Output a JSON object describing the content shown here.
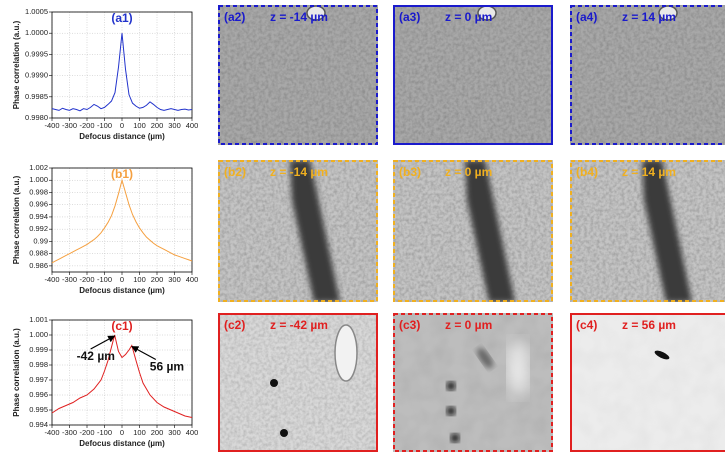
{
  "chart_data": [
    {
      "type": "line",
      "title": "(a1)",
      "xlabel": "Defocus distance (µm)",
      "ylabel": "Phase correlation (a.u.)",
      "xlim": [
        -400,
        400
      ],
      "xticks": [
        -400,
        -300,
        -200,
        -100,
        0,
        100,
        200,
        300,
        400
      ],
      "ylim": [
        0.998,
        1.0005
      ],
      "yticks": [
        {
          "value": 0.998,
          "label": "0.9980"
        },
        0.9985,
        {
          "value": 0.999,
          "label": "0.9990"
        },
        0.9995,
        {
          "value": 1.0,
          "label": "1.0000"
        },
        1.0005
      ],
      "grid": true,
      "x": [
        -400,
        -380,
        -360,
        -340,
        -320,
        -300,
        -280,
        -260,
        -240,
        -220,
        -200,
        -180,
        -160,
        -140,
        -120,
        -100,
        -80,
        -60,
        -40,
        -20,
        0,
        20,
        40,
        60,
        80,
        100,
        120,
        140,
        160,
        180,
        200,
        220,
        240,
        260,
        280,
        300,
        320,
        340,
        360,
        380,
        400
      ],
      "series": [
        {
          "color": "#2233cc",
          "values": [
            0.99822,
            0.9982,
            0.99818,
            0.99823,
            0.9982,
            0.99818,
            0.99822,
            0.9982,
            0.99817,
            0.99822,
            0.9982,
            0.99825,
            0.99832,
            0.99828,
            0.99822,
            0.99825,
            0.99832,
            0.9984,
            0.9986,
            0.9992,
            1.0,
            0.99915,
            0.99855,
            0.99835,
            0.99828,
            0.99823,
            0.99825,
            0.9983,
            0.99838,
            0.99832,
            0.99825,
            0.9982,
            0.99818,
            0.9982,
            0.99822,
            0.9982,
            0.99818,
            0.9982,
            0.99821,
            0.99819,
            0.9982
          ]
        }
      ]
    },
    {
      "type": "line",
      "title": "(b1)",
      "xlabel": "Defocus distance (µm)",
      "ylabel": "Phase correlation (a.u.)",
      "xlim": [
        -400,
        400
      ],
      "xticks": [
        -400,
        -300,
        -200,
        -100,
        0,
        100,
        200,
        300,
        400
      ],
      "ylim": [
        0.985,
        1.002
      ],
      "yticks": [
        0.986,
        0.988,
        0.99,
        0.992,
        0.994,
        0.996,
        0.998,
        {
          "value": 1.0,
          "label": "1.000"
        },
        1.002
      ],
      "grid": true,
      "x": [
        -400,
        -380,
        -360,
        -340,
        -320,
        -300,
        -280,
        -260,
        -240,
        -220,
        -200,
        -180,
        -160,
        -140,
        -120,
        -100,
        -80,
        -60,
        -40,
        -20,
        0,
        20,
        40,
        60,
        80,
        100,
        120,
        140,
        160,
        180,
        200,
        220,
        240,
        260,
        280,
        300,
        320,
        340,
        360,
        380,
        400
      ],
      "series": [
        {
          "color": "#f5a040",
          "values": [
            0.9865,
            0.9868,
            0.9871,
            0.9874,
            0.9877,
            0.988,
            0.9883,
            0.9886,
            0.9889,
            0.9892,
            0.9895,
            0.9899,
            0.9903,
            0.9908,
            0.9914,
            0.9922,
            0.9931,
            0.9942,
            0.9958,
            0.9978,
            1.0,
            0.998,
            0.996,
            0.9944,
            0.9932,
            0.9922,
            0.9914,
            0.9907,
            0.9902,
            0.9897,
            0.9893,
            0.989,
            0.9887,
            0.9884,
            0.9881,
            0.9878,
            0.9876,
            0.9874,
            0.9872,
            0.987,
            0.9868
          ]
        }
      ]
    },
    {
      "type": "line",
      "title": "(c1)",
      "xlabel": "Defocus distance (µm)",
      "ylabel": "Phase correlation (a.u.)",
      "xlim": [
        -400,
        400
      ],
      "xticks": [
        -400,
        -300,
        -200,
        -100,
        0,
        100,
        200,
        300,
        400
      ],
      "ylim": [
        0.994,
        1.001
      ],
      "yticks": [
        0.994,
        0.995,
        0.996,
        0.997,
        0.998,
        0.999,
        {
          "value": 1.0,
          "label": "1.000"
        },
        1.001
      ],
      "grid": true,
      "x": [
        -400,
        -360,
        -320,
        -280,
        -240,
        -200,
        -160,
        -120,
        -100,
        -80,
        -60,
        -42,
        -20,
        0,
        20,
        40,
        56,
        80,
        100,
        120,
        160,
        200,
        240,
        280,
        320,
        360,
        400
      ],
      "series": [
        {
          "color": "#e02020",
          "values": [
            0.9948,
            0.9951,
            0.9953,
            0.9955,
            0.9958,
            0.996,
            0.9964,
            0.997,
            0.9976,
            0.9983,
            0.9992,
            1.0,
            0.9989,
            0.9985,
            0.9987,
            0.999,
            0.9993,
            0.9983,
            0.9975,
            0.9968,
            0.996,
            0.9955,
            0.9952,
            0.995,
            0.9948,
            0.9946,
            0.9945
          ]
        }
      ],
      "annotations": [
        {
          "text": "-42 µm",
          "x": -42
        },
        {
          "text": "56 µm",
          "x": 56
        }
      ]
    }
  ],
  "panels": [
    [
      {
        "label": "(a2)",
        "z": "z = -14 µm"
      },
      {
        "label": "(a3)",
        "z": "z = 0 µm"
      },
      {
        "label": "(a4)",
        "z": "z = 14 µm"
      }
    ],
    [
      {
        "label": "(b2)",
        "z": "z = -14 µm"
      },
      {
        "label": "(b3)",
        "z": "z = 0 µm"
      },
      {
        "label": "(b4)",
        "z": "z = 14 µm"
      }
    ],
    [
      {
        "label": "(c2)",
        "z": "z = -42 µm"
      },
      {
        "label": "(c3)",
        "z": "z = 0 µm"
      },
      {
        "label": "(c4)",
        "z": "z = 56 µm"
      }
    ]
  ]
}
